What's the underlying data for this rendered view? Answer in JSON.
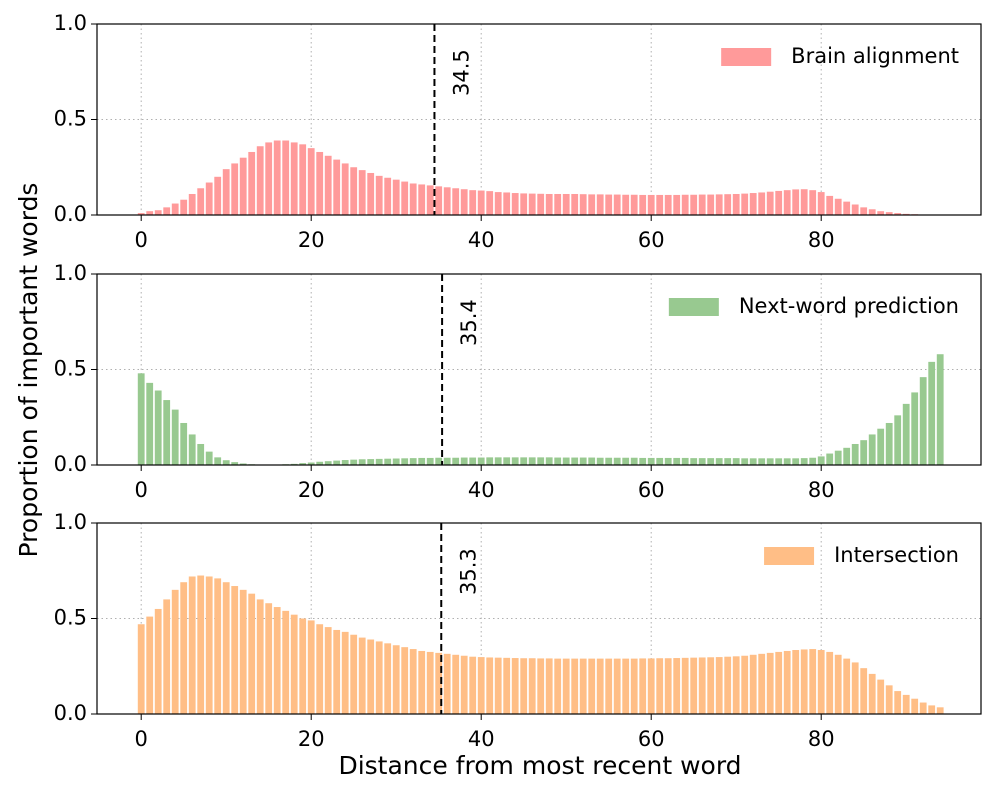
{
  "figure": {
    "xlabel": "Distance from most recent word",
    "ylabel": "Proportion of important words"
  },
  "chart_data": [
    {
      "type": "bar",
      "legend": "upper right",
      "grid": true,
      "x": [
        0,
        1,
        2,
        3,
        4,
        5,
        6,
        7,
        8,
        9,
        10,
        11,
        12,
        13,
        14,
        15,
        16,
        17,
        18,
        19,
        20,
        21,
        22,
        23,
        24,
        25,
        26,
        27,
        28,
        29,
        30,
        31,
        32,
        33,
        34,
        35,
        36,
        37,
        38,
        39,
        40,
        41,
        42,
        43,
        44,
        45,
        46,
        47,
        48,
        49,
        50,
        51,
        52,
        53,
        54,
        55,
        56,
        57,
        58,
        59,
        60,
        61,
        62,
        63,
        64,
        65,
        66,
        67,
        68,
        69,
        70,
        71,
        72,
        73,
        74,
        75,
        76,
        77,
        78,
        79,
        80,
        81,
        82,
        83,
        84,
        85,
        86,
        87,
        88,
        89,
        90,
        91,
        92,
        93,
        94
      ],
      "series": [
        {
          "name": "Brain alignment",
          "color": "#ff9a9a",
          "values": [
            0.01,
            0.02,
            0.025,
            0.04,
            0.06,
            0.08,
            0.11,
            0.14,
            0.17,
            0.2,
            0.24,
            0.27,
            0.3,
            0.33,
            0.36,
            0.38,
            0.39,
            0.39,
            0.38,
            0.37,
            0.35,
            0.33,
            0.31,
            0.29,
            0.27,
            0.25,
            0.235,
            0.22,
            0.205,
            0.195,
            0.185,
            0.175,
            0.165,
            0.16,
            0.155,
            0.15,
            0.145,
            0.14,
            0.135,
            0.13,
            0.128,
            0.125,
            0.12,
            0.118,
            0.115,
            0.113,
            0.112,
            0.111,
            0.11,
            0.11,
            0.11,
            0.11,
            0.109,
            0.108,
            0.108,
            0.107,
            0.107,
            0.106,
            0.106,
            0.105,
            0.105,
            0.105,
            0.105,
            0.105,
            0.106,
            0.106,
            0.107,
            0.107,
            0.108,
            0.109,
            0.11,
            0.112,
            0.115,
            0.118,
            0.122,
            0.126,
            0.13,
            0.134,
            0.135,
            0.13,
            0.12,
            0.1,
            0.085,
            0.07,
            0.055,
            0.04,
            0.03,
            0.02,
            0.015,
            0.01,
            0.006,
            0.004,
            0.002,
            0.001,
            0
          ]
        }
      ],
      "vline": 34.5,
      "xlim": [
        -5.2,
        98.8
      ],
      "xticks": [
        0,
        20,
        40,
        60,
        80
      ],
      "ylim": [
        0,
        1
      ],
      "yticks": [
        {
          "value": 0,
          "label": "0.0"
        },
        {
          "value": 0.5,
          "label": "0.5"
        },
        {
          "value": 1,
          "label": "1.0"
        }
      ]
    },
    {
      "type": "bar",
      "legend": "upper right",
      "grid": true,
      "x": [
        0,
        1,
        2,
        3,
        4,
        5,
        6,
        7,
        8,
        9,
        10,
        11,
        12,
        13,
        14,
        15,
        16,
        17,
        18,
        19,
        20,
        21,
        22,
        23,
        24,
        25,
        26,
        27,
        28,
        29,
        30,
        31,
        32,
        33,
        34,
        35,
        36,
        37,
        38,
        39,
        40,
        41,
        42,
        43,
        44,
        45,
        46,
        47,
        48,
        49,
        50,
        51,
        52,
        53,
        54,
        55,
        56,
        57,
        58,
        59,
        60,
        61,
        62,
        63,
        64,
        65,
        66,
        67,
        68,
        69,
        70,
        71,
        72,
        73,
        74,
        75,
        76,
        77,
        78,
        79,
        80,
        81,
        82,
        83,
        84,
        85,
        86,
        87,
        88,
        89,
        90,
        91,
        92,
        93,
        94
      ],
      "series": [
        {
          "name": "Next-word prediction",
          "color": "#98c990",
          "values": [
            0.48,
            0.43,
            0.39,
            0.34,
            0.29,
            0.22,
            0.16,
            0.11,
            0.07,
            0.04,
            0.025,
            0.015,
            0.008,
            0.004,
            0.002,
            0.001,
            0.002,
            0.004,
            0.006,
            0.01,
            0.013,
            0.017,
            0.02,
            0.023,
            0.026,
            0.028,
            0.03,
            0.031,
            0.032,
            0.033,
            0.034,
            0.035,
            0.036,
            0.037,
            0.037,
            0.038,
            0.038,
            0.038,
            0.039,
            0.039,
            0.039,
            0.04,
            0.04,
            0.04,
            0.04,
            0.04,
            0.04,
            0.04,
            0.04,
            0.039,
            0.039,
            0.039,
            0.039,
            0.039,
            0.038,
            0.038,
            0.038,
            0.038,
            0.038,
            0.037,
            0.037,
            0.037,
            0.037,
            0.037,
            0.037,
            0.036,
            0.036,
            0.036,
            0.036,
            0.036,
            0.036,
            0.035,
            0.035,
            0.035,
            0.035,
            0.035,
            0.035,
            0.035,
            0.036,
            0.038,
            0.045,
            0.06,
            0.075,
            0.09,
            0.11,
            0.13,
            0.16,
            0.19,
            0.22,
            0.26,
            0.32,
            0.38,
            0.46,
            0.54,
            0.58
          ]
        }
      ],
      "vline": 35.4,
      "xlim": [
        -5.2,
        98.8
      ],
      "xticks": [
        0,
        20,
        40,
        60,
        80
      ],
      "ylim": [
        0,
        1
      ],
      "yticks": [
        {
          "value": 0,
          "label": "0.0"
        },
        {
          "value": 0.5,
          "label": "0.5"
        },
        {
          "value": 1,
          "label": "1.0"
        }
      ]
    },
    {
      "type": "bar",
      "legend": "upper right",
      "grid": true,
      "x": [
        0,
        1,
        2,
        3,
        4,
        5,
        6,
        7,
        8,
        9,
        10,
        11,
        12,
        13,
        14,
        15,
        16,
        17,
        18,
        19,
        20,
        21,
        22,
        23,
        24,
        25,
        26,
        27,
        28,
        29,
        30,
        31,
        32,
        33,
        34,
        35,
        36,
        37,
        38,
        39,
        40,
        41,
        42,
        43,
        44,
        45,
        46,
        47,
        48,
        49,
        50,
        51,
        52,
        53,
        54,
        55,
        56,
        57,
        58,
        59,
        60,
        61,
        62,
        63,
        64,
        65,
        66,
        67,
        68,
        69,
        70,
        71,
        72,
        73,
        74,
        75,
        76,
        77,
        78,
        79,
        80,
        81,
        82,
        83,
        84,
        85,
        86,
        87,
        88,
        89,
        90,
        91,
        92,
        93,
        94
      ],
      "series": [
        {
          "name": "Intersection",
          "color": "#ffbe86",
          "values": [
            0.47,
            0.51,
            0.55,
            0.6,
            0.65,
            0.69,
            0.72,
            0.725,
            0.72,
            0.71,
            0.69,
            0.67,
            0.65,
            0.63,
            0.6,
            0.58,
            0.56,
            0.54,
            0.52,
            0.5,
            0.49,
            0.47,
            0.455,
            0.44,
            0.43,
            0.415,
            0.4,
            0.39,
            0.38,
            0.37,
            0.36,
            0.35,
            0.34,
            0.33,
            0.325,
            0.32,
            0.315,
            0.31,
            0.305,
            0.3,
            0.298,
            0.296,
            0.295,
            0.294,
            0.293,
            0.292,
            0.292,
            0.291,
            0.291,
            0.29,
            0.29,
            0.29,
            0.29,
            0.29,
            0.29,
            0.29,
            0.29,
            0.29,
            0.29,
            0.291,
            0.291,
            0.292,
            0.292,
            0.293,
            0.294,
            0.295,
            0.296,
            0.297,
            0.298,
            0.3,
            0.302,
            0.305,
            0.31,
            0.315,
            0.32,
            0.325,
            0.33,
            0.335,
            0.338,
            0.34,
            0.335,
            0.325,
            0.31,
            0.29,
            0.27,
            0.24,
            0.21,
            0.18,
            0.15,
            0.12,
            0.1,
            0.08,
            0.06,
            0.045,
            0.035
          ]
        }
      ],
      "vline": 35.3,
      "xlim": [
        -5.2,
        98.8
      ],
      "xticks": [
        0,
        20,
        40,
        60,
        80
      ],
      "ylim": [
        0,
        1
      ],
      "yticks": [
        {
          "value": 0,
          "label": "0.0"
        },
        {
          "value": 0.5,
          "label": "0.5"
        },
        {
          "value": 1,
          "label": "1.0"
        }
      ]
    }
  ]
}
